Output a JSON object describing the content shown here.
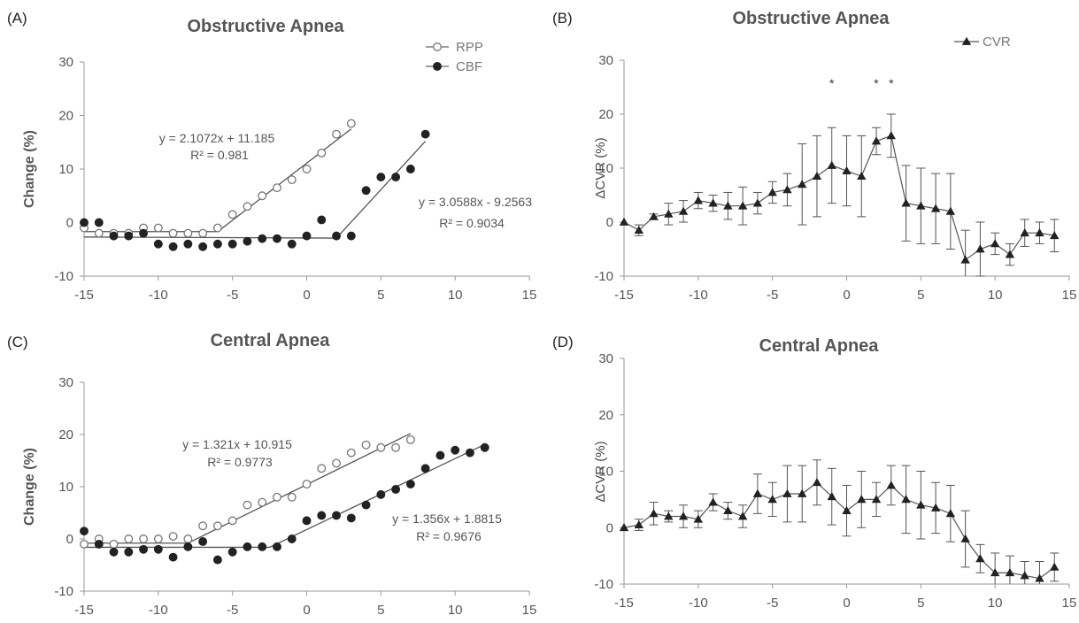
{
  "chart_data": [
    {
      "type": "scatter",
      "panel_letter": "(A)",
      "title": "Obstructive Apnea",
      "xlabel": "",
      "ylabel": "Change (%)",
      "xlim": [
        -15,
        15
      ],
      "ylim": [
        -10,
        30
      ],
      "xticks": [
        -15,
        -10,
        -5,
        0,
        5,
        10,
        15
      ],
      "yticks": [
        -10,
        0,
        10,
        20,
        30
      ],
      "grid": false,
      "legend": "top-right",
      "series": [
        {
          "name": "RPP",
          "marker": "open-circle",
          "x": [
            -15,
            -14,
            -13,
            -12,
            -11,
            -10,
            -9,
            -8,
            -7,
            -6,
            -5,
            -4,
            -3,
            -2,
            -1,
            0,
            1,
            2,
            3
          ],
          "y": [
            -1,
            -2,
            -2,
            -2,
            -1,
            -1,
            -2,
            -2,
            -2,
            -1,
            1.5,
            3,
            5,
            6.5,
            8,
            10,
            13,
            16.5,
            18.5
          ]
        },
        {
          "name": "CBF",
          "marker": "filled-circle",
          "x": [
            -15,
            -14,
            -13,
            -12,
            -11,
            -10,
            -9,
            -8,
            -7,
            -6,
            -5,
            -4,
            -3,
            -2,
            -1,
            0,
            1,
            2,
            3,
            4,
            5,
            6,
            7,
            8
          ],
          "y": [
            0,
            0,
            -2.5,
            -2.5,
            -2,
            -4,
            -4.5,
            -4,
            -4.5,
            -4,
            -4,
            -3.5,
            -3,
            -3,
            -4,
            -2.5,
            0.5,
            -2.5,
            -2.5,
            6,
            8.5,
            8.5,
            10,
            16.5
          ]
        }
      ],
      "fits": [
        {
          "equation": "y = 2.1072x + 11.185",
          "r2": "R² = 0.981",
          "segments": [
            [
              -15,
              -1.7
            ],
            [
              -6,
              -1.7
            ],
            [
              3,
              17.5
            ]
          ]
        },
        {
          "equation": "y = 3.0588x - 9.2563",
          "r2": "R² = 0.9034",
          "segments": [
            [
              -15,
              -2.7
            ],
            [
              2,
              -2.9
            ],
            [
              8,
              15.2
            ]
          ]
        }
      ]
    },
    {
      "type": "line",
      "panel_letter": "(B)",
      "title": "Obstructive Apnea",
      "xlabel": "",
      "ylabel": "ΔCVR (%)",
      "xlim": [
        -15,
        15
      ],
      "ylim": [
        -10,
        30
      ],
      "xticks": [
        -15,
        -10,
        -5,
        0,
        5,
        10,
        15
      ],
      "yticks": [
        -10,
        0,
        10,
        20,
        30
      ],
      "grid": false,
      "legend": "top-right",
      "significance_marker": "*",
      "significant_x": [
        -1,
        2,
        3
      ],
      "series": [
        {
          "name": "CVR",
          "marker": "filled-triangle",
          "x": [
            -15,
            -14,
            -13,
            -12,
            -11,
            -10,
            -9,
            -8,
            -7,
            -6,
            -5,
            -4,
            -3,
            -2,
            -1,
            0,
            1,
            2,
            3,
            4,
            5,
            6,
            7,
            8,
            9,
            10,
            11,
            12,
            13,
            14
          ],
          "y": [
            0,
            -1.5,
            1,
            1.5,
            2,
            4,
            3.5,
            3,
            3,
            3.5,
            5.5,
            6,
            7,
            8.5,
            10.5,
            9.5,
            8.5,
            15,
            16,
            3.5,
            3,
            2.5,
            2,
            -7,
            -5,
            -4,
            -6,
            -2,
            -2,
            -2.5
          ],
          "error": [
            0,
            1,
            0.5,
            2,
            2,
            1.5,
            1.5,
            2.5,
            3.5,
            2,
            2,
            3,
            7.5,
            7.5,
            7,
            6.5,
            7.5,
            2.5,
            4,
            7,
            7,
            6.5,
            7,
            5.5,
            5,
            2,
            2,
            2.5,
            2,
            3
          ]
        }
      ]
    },
    {
      "type": "scatter",
      "panel_letter": "(C)",
      "title": "Central Apnea",
      "xlabel": "",
      "ylabel": "Change (%)",
      "xlim": [
        -15,
        15
      ],
      "ylim": [
        -10,
        30
      ],
      "xticks": [
        -15,
        -10,
        -5,
        0,
        5,
        10,
        15
      ],
      "yticks": [
        -10,
        0,
        10,
        20,
        30
      ],
      "grid": false,
      "series": [
        {
          "name": "RPP",
          "marker": "open-circle",
          "x": [
            -15,
            -14,
            -13,
            -12,
            -11,
            -10,
            -9,
            -8,
            -7,
            -6,
            -5,
            -4,
            -3,
            -2,
            -1,
            0,
            1,
            2,
            3,
            4,
            5,
            6,
            7
          ],
          "y": [
            -1,
            0,
            -1,
            0,
            0,
            0,
            0.5,
            0,
            2.5,
            2.5,
            3.5,
            6.5,
            7,
            8,
            8,
            10.5,
            13.5,
            14.5,
            16.5,
            18,
            17.5,
            17.5,
            19
          ]
        },
        {
          "name": "CBF",
          "marker": "filled-circle",
          "x": [
            -15,
            -14,
            -13,
            -12,
            -11,
            -10,
            -9,
            -8,
            -7,
            -6,
            -5,
            -4,
            -3,
            -2,
            -1,
            0,
            1,
            2,
            3,
            4,
            5,
            6,
            7,
            8,
            9,
            10,
            11,
            12
          ],
          "y": [
            1.5,
            -1,
            -2.5,
            -2.5,
            -2,
            -2,
            -3.5,
            -1.5,
            -0.5,
            -4,
            -2.5,
            -1.5,
            -1.5,
            -1.5,
            0,
            3.5,
            4.5,
            4.5,
            4,
            6.5,
            8.5,
            9.5,
            10.5,
            13.5,
            16,
            17,
            16.5,
            17.5
          ]
        }
      ],
      "fits": [
        {
          "equation": "y = 1.321x + 10.915",
          "r2": "R² = 0.9773",
          "segments": [
            [
              -15,
              -0.8
            ],
            [
              -8,
              -0.8
            ],
            [
              7,
              20.2
            ]
          ]
        },
        {
          "equation": "y = 1.356x + 1.8815",
          "r2": "R² = 0.9676",
          "segments": [
            [
              -15,
              -1.6
            ],
            [
              -2.5,
              -1.6
            ],
            [
              12,
              18.1
            ]
          ]
        }
      ]
    },
    {
      "type": "line",
      "panel_letter": "(D)",
      "title": "Central Apnea",
      "xlabel": "",
      "ylabel": "ΔCVR (%)",
      "xlim": [
        -15,
        15
      ],
      "ylim": [
        -10,
        30
      ],
      "xticks": [
        -15,
        -10,
        -5,
        0,
        5,
        10,
        15
      ],
      "yticks": [
        -10,
        0,
        10,
        20,
        30
      ],
      "grid": false,
      "series": [
        {
          "name": "CVR",
          "marker": "filled-triangle",
          "x": [
            -15,
            -14,
            -13,
            -12,
            -11,
            -10,
            -9,
            -8,
            -7,
            -6,
            -5,
            -4,
            -3,
            -2,
            -1,
            0,
            1,
            2,
            3,
            4,
            5,
            6,
            7,
            8,
            9,
            10,
            11,
            12,
            13,
            14
          ],
          "y": [
            0,
            0.5,
            2.5,
            2,
            2,
            1.5,
            4.5,
            3,
            2,
            6,
            5,
            6,
            6,
            8,
            5.5,
            3,
            5,
            5,
            7.5,
            5,
            4,
            3.5,
            2.5,
            -2,
            -5.5,
            -8,
            -8,
            -8.5,
            -9,
            -7
          ],
          "error": [
            0,
            1,
            2,
            1,
            2,
            1.5,
            1.5,
            1.5,
            2,
            3.5,
            3,
            5,
            5,
            4,
            5,
            4.5,
            5,
            3,
            3.5,
            6,
            6,
            4.5,
            5,
            5,
            2.5,
            3.5,
            3,
            2.5,
            3,
            2.5
          ]
        }
      ]
    }
  ]
}
